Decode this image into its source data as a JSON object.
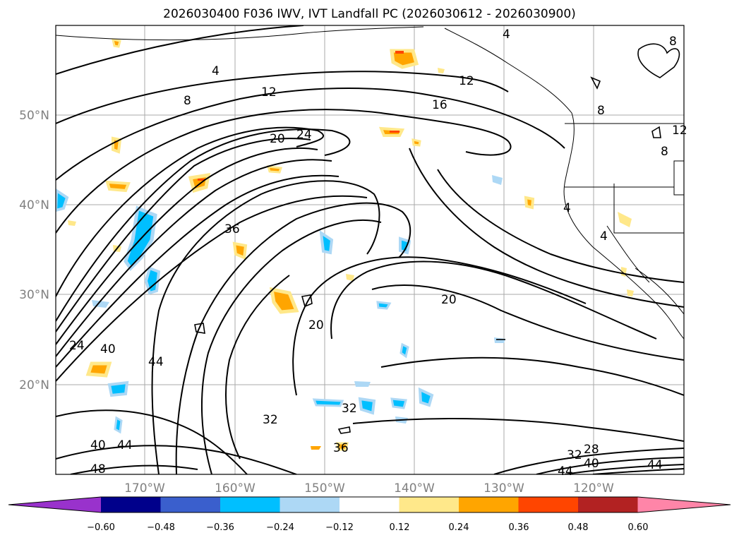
{
  "title": "2026030400 F036 IWV, IVT Landfall PC (2026030612 - 2026030900)",
  "map": {
    "lat_labels": [
      "50°N",
      "40°N",
      "30°N",
      "20°N"
    ],
    "lon_labels": [
      "170°W",
      "160°W",
      "150°W",
      "140°W",
      "130°W",
      "120°W"
    ],
    "contour_labels": [
      "4",
      "8",
      "12",
      "16",
      "20",
      "24",
      "36",
      "20",
      "20",
      "24",
      "40",
      "44",
      "40",
      "44",
      "48",
      "32",
      "32",
      "36",
      "28",
      "32",
      "40",
      "44",
      "44",
      "4",
      "4",
      "4",
      "8",
      "8",
      "8",
      "12"
    ]
  },
  "colorbar": {
    "ticks": [
      "−0.60",
      "−0.48",
      "−0.36",
      "−0.24",
      "−0.12",
      "0.12",
      "0.24",
      "0.36",
      "0.48",
      "0.60"
    ],
    "colors": [
      "#9932cc",
      "#00008b",
      "#3a5fcd",
      "#00bfff",
      "#add8f5",
      "#ffffff",
      "#ffe88a",
      "#ffa500",
      "#ff4500",
      "#b22222",
      "#ff85a8"
    ]
  }
}
